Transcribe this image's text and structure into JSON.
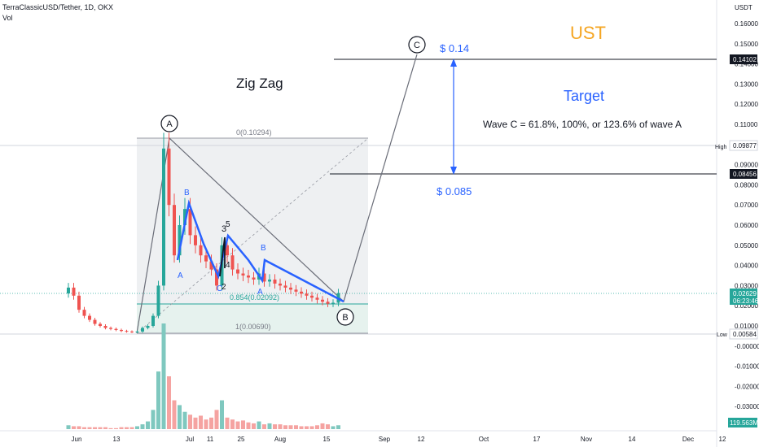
{
  "header": {
    "symbol_line": "TerraClassicUSD/Tether, 1D, OKX",
    "volume_label": "Vol"
  },
  "axis": {
    "currency": "USDT",
    "price_ticks": [
      "0.16000",
      "0.15000",
      "0.14000",
      "0.13000",
      "0.12000",
      "0.11000",
      "0.10000",
      "0.09000",
      "0.08000",
      "0.07000",
      "0.06000",
      "0.05000",
      "0.04000",
      "0.03000",
      "0.02000",
      "0.01000",
      "-0.00000",
      "-0.01000",
      "-0.02000",
      "-0.03000"
    ],
    "price_tick_values": [
      0.16,
      0.15,
      0.14,
      0.13,
      0.12,
      0.11,
      0.1,
      0.09,
      0.08,
      0.07,
      0.06,
      0.05,
      0.04,
      0.03,
      0.02,
      0.01,
      0.0,
      -0.01,
      -0.02,
      -0.03
    ],
    "date_ticks": [
      "Jun",
      "13",
      "Jul",
      "11",
      "25",
      "Aug",
      "15",
      "Sep",
      "12",
      "Oct",
      "17",
      "Nov",
      "14",
      "Dec",
      "12"
    ]
  },
  "price_labels": {
    "target_line": "0.14102",
    "high_label": "High",
    "high_value": "0.09877",
    "support_line": "0.08456",
    "current_price": "0.02629",
    "countdown": "06:23:46",
    "low_label": "Low",
    "low_value": "0.00584",
    "volume_value": "119.563M"
  },
  "annotations": {
    "title_ust": "UST",
    "zig_zag": "Zig Zag",
    "target": "Target",
    "wave_note": "Wave C = 61.8%, 100%, or 123.6% of wave A",
    "price_top": "$ 0.14",
    "price_bottom": "$ 0.085",
    "circle_c": "C",
    "circle_a": "A",
    "circle_b": "B",
    "fib_top": "0(0.10294)",
    "fib_mid": "0.854(0.02092)",
    "fib_bottom": "1(0.00690)",
    "wave_b1": "B",
    "wave_a1": "A",
    "wave_c1": "C",
    "wave_3": "3",
    "wave_5": "5",
    "wave_2": "2",
    "wave_4": "4",
    "wave_b2": "B",
    "wave_a2": "A"
  },
  "colors": {
    "up": "#26a69a",
    "down": "#ef5350",
    "vol_up": "#7fc8bf",
    "vol_down": "#f5a3a1",
    "wave": "#2962ff",
    "ust": "#f5a623",
    "target": "#2962ff"
  },
  "chart_data": {
    "type": "candlestick",
    "title": "TerraClassicUSD/Tether, 1D, OKX",
    "ylabel": "USDT",
    "ylim": [
      -0.03,
      0.16
    ],
    "x_range": [
      "Jun",
      "Dec 12"
    ],
    "series": [
      {
        "name": "price_close",
        "values": [
          0.029,
          0.025,
          0.018,
          0.015,
          0.013,
          0.011,
          0.01,
          0.009,
          0.0085,
          0.008,
          0.0075,
          0.0072,
          0.007,
          0.0072,
          0.009,
          0.01,
          0.015,
          0.03,
          0.098,
          0.07,
          0.045,
          0.06,
          0.068,
          0.055,
          0.05,
          0.045,
          0.042,
          0.038,
          0.03,
          0.05,
          0.045,
          0.038,
          0.036,
          0.035,
          0.034,
          0.033,
          0.036,
          0.032,
          0.033,
          0.031,
          0.03,
          0.029,
          0.028,
          0.027,
          0.026,
          0.025,
          0.024,
          0.023,
          0.022,
          0.021,
          0.0215,
          0.0263
        ]
      },
      {
        "name": "Vol",
        "values": [
          4,
          3,
          3,
          2,
          2,
          2,
          2,
          2,
          1,
          1,
          2,
          2,
          2,
          3,
          5,
          8,
          20,
          60,
          110,
          55,
          30,
          25,
          18,
          15,
          12,
          14,
          10,
          12,
          20,
          30,
          12,
          10,
          8,
          9,
          7,
          6,
          8,
          5,
          6,
          5,
          5,
          4,
          4,
          4,
          3,
          3,
          3,
          4,
          6,
          5,
          3,
          4
        ]
      }
    ],
    "levels": {
      "high": 0.09877,
      "low": 0.00584,
      "target": 0.14102,
      "support": 0.08456,
      "fib_0": 0.10294,
      "fib_0854": 0.02092,
      "fib_1": 0.0069,
      "last": 0.02629
    }
  }
}
